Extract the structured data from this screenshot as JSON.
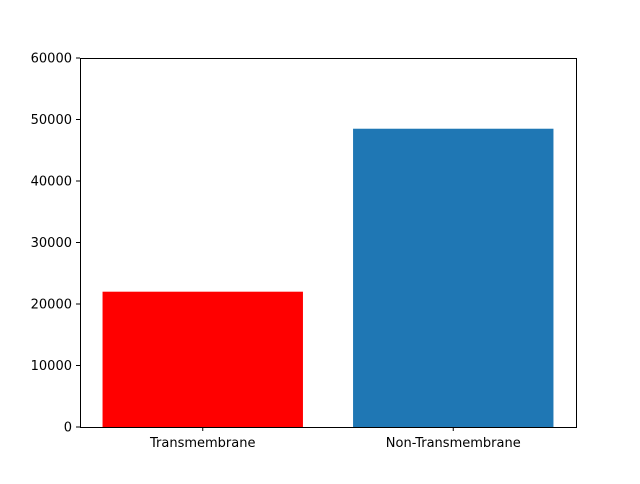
{
  "chart_data": {
    "type": "bar",
    "title": "",
    "xlabel": "",
    "ylabel": "",
    "categories": [
      "Transmembrane",
      "Non-Transmembrane"
    ],
    "values": [
      22000,
      48500
    ],
    "colors": [
      "#ff0000",
      "#1f77b4"
    ],
    "ylim": [
      0,
      60000
    ],
    "yticks": [
      0,
      10000,
      20000,
      30000,
      40000,
      50000,
      60000
    ],
    "grid": false,
    "legend": "none"
  }
}
